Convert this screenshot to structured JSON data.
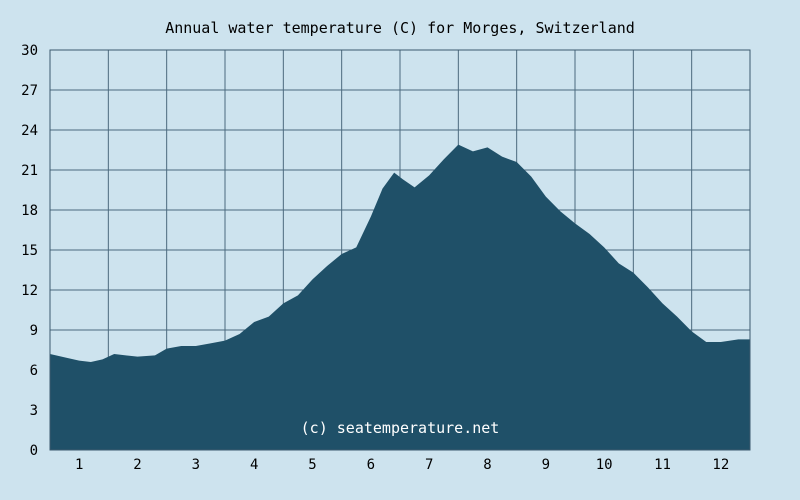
{
  "chart_data": {
    "type": "area",
    "title": "Annual water temperature (C) for Morges, Switzerland",
    "xlabel": "",
    "ylabel": "",
    "ylim": [
      0,
      30
    ],
    "yticks": [
      "0",
      "3",
      "6",
      "9",
      "12",
      "15",
      "18",
      "21",
      "24",
      "27",
      "30"
    ],
    "x_tick_labels": [
      "1",
      "2",
      "3",
      "4",
      "5",
      "6",
      "7",
      "8",
      "9",
      "10",
      "11",
      "12"
    ],
    "x_unit": "month",
    "grid": true,
    "watermark": "(c) seatemperature.net",
    "series": [
      {
        "points": [
          [
            0.5,
            7.2
          ],
          [
            0.8,
            6.9
          ],
          [
            1.0,
            6.7
          ],
          [
            1.2,
            6.6
          ],
          [
            1.4,
            6.8
          ],
          [
            1.6,
            7.2
          ],
          [
            1.8,
            7.1
          ],
          [
            2.0,
            7.0
          ],
          [
            2.3,
            7.1
          ],
          [
            2.5,
            7.6
          ],
          [
            2.75,
            7.8
          ],
          [
            3.0,
            7.8
          ],
          [
            3.25,
            8.0
          ],
          [
            3.5,
            8.2
          ],
          [
            3.75,
            8.7
          ],
          [
            4.0,
            9.6
          ],
          [
            4.25,
            10.0
          ],
          [
            4.5,
            11.0
          ],
          [
            4.75,
            11.6
          ],
          [
            5.0,
            12.8
          ],
          [
            5.25,
            13.8
          ],
          [
            5.5,
            14.7
          ],
          [
            5.75,
            15.2
          ],
          [
            6.0,
            17.5
          ],
          [
            6.2,
            19.6
          ],
          [
            6.4,
            20.8
          ],
          [
            6.55,
            20.3
          ],
          [
            6.75,
            19.7
          ],
          [
            7.0,
            20.6
          ],
          [
            7.25,
            21.8
          ],
          [
            7.5,
            22.9
          ],
          [
            7.75,
            22.4
          ],
          [
            8.0,
            22.7
          ],
          [
            8.25,
            22.0
          ],
          [
            8.5,
            21.6
          ],
          [
            8.75,
            20.5
          ],
          [
            9.0,
            19.0
          ],
          [
            9.25,
            17.9
          ],
          [
            9.5,
            17.0
          ],
          [
            9.75,
            16.2
          ],
          [
            10.0,
            15.2
          ],
          [
            10.25,
            14.0
          ],
          [
            10.5,
            13.3
          ],
          [
            10.75,
            12.2
          ],
          [
            11.0,
            11.0
          ],
          [
            11.25,
            10.0
          ],
          [
            11.5,
            8.9
          ],
          [
            11.75,
            8.1
          ],
          [
            12.0,
            8.1
          ],
          [
            12.3,
            8.3
          ]
        ]
      }
    ]
  },
  "colors": {
    "background": "#cde3ee",
    "plot_background": "#cde3ee",
    "fill": "#1f5068",
    "grid": "#4c6a7e",
    "axis": "#3c5a6e",
    "text": "#000000",
    "watermark": "#ffffff"
  }
}
